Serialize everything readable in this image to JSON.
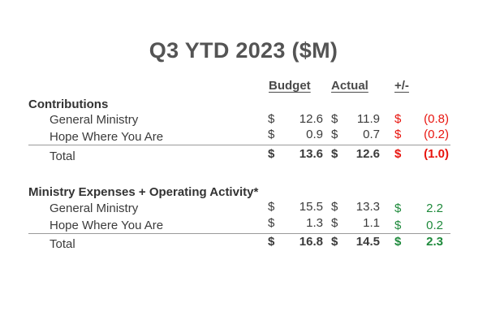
{
  "title": "Q3 YTD 2023 ($M)",
  "headers": {
    "budget": "Budget",
    "actual": "Actual",
    "variance": "+/-"
  },
  "colors": {
    "negative": "#e8140e",
    "positive": "#1f8a3c",
    "text": "#3b3b3b"
  },
  "sections": [
    {
      "title": "Contributions",
      "rows": [
        {
          "label": "General Ministry",
          "budget": "12.6",
          "actual": "11.9",
          "variance": "(0.8)"
        },
        {
          "label": "Hope Where You Are",
          "budget": "0.9",
          "actual": "0.7",
          "variance": "(0.2)"
        }
      ],
      "total": {
        "label": "Total",
        "budget": "13.6",
        "actual": "12.6",
        "variance": "(1.0)"
      }
    },
    {
      "title": "Ministry Expenses + Operating Activity*",
      "rows": [
        {
          "label": "General Ministry",
          "budget": "15.5",
          "actual": "13.3",
          "variance": "2.2"
        },
        {
          "label": "Hope Where You Are",
          "budget": "1.3",
          "actual": "1.1",
          "variance": "0.2"
        }
      ],
      "total": {
        "label": "Total",
        "budget": "16.8",
        "actual": "14.5",
        "variance": "2.3"
      }
    }
  ],
  "currency_symbol": "$"
}
